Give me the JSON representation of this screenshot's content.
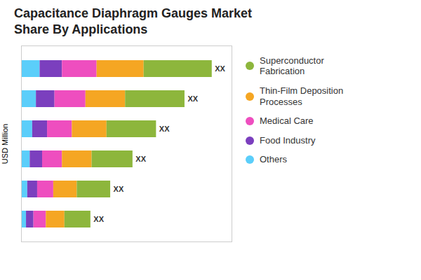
{
  "chart_data": {
    "type": "bar",
    "orientation": "horizontal",
    "stacked": true,
    "title": "Capacitance Diaphragm Gauges Market\nShare By Applications",
    "ylabel": "USD Million",
    "categories": [
      null,
      null,
      null,
      null,
      null,
      null
    ],
    "series": [
      {
        "name": "Others",
        "color": "#5BCEFA",
        "values": [
          1.5,
          1.2,
          0.9,
          0.7,
          0.5,
          0.4
        ]
      },
      {
        "name": "Food Industry",
        "color": "#7B3FBE",
        "values": [
          1.8,
          1.5,
          1.2,
          1.0,
          0.8,
          0.6
        ]
      },
      {
        "name": "Medical Care",
        "color": "#EE4EBF",
        "values": [
          2.8,
          2.5,
          2.0,
          1.6,
          1.3,
          1.0
        ]
      },
      {
        "name": "Thin-Film Deposition\nProcesses",
        "color": "#F5A623",
        "values": [
          3.8,
          3.2,
          2.8,
          2.4,
          1.9,
          1.5
        ]
      },
      {
        "name": "Superconductor\nFabrication",
        "color": "#8DB63C",
        "values": [
          5.5,
          4.8,
          4.0,
          3.3,
          2.7,
          2.1
        ]
      }
    ],
    "annotations": [
      "XX",
      "XX",
      "XX",
      "XX",
      "XX",
      "XX"
    ],
    "xlim": [
      0,
      17
    ],
    "tick_labels": false,
    "legend": "right"
  }
}
